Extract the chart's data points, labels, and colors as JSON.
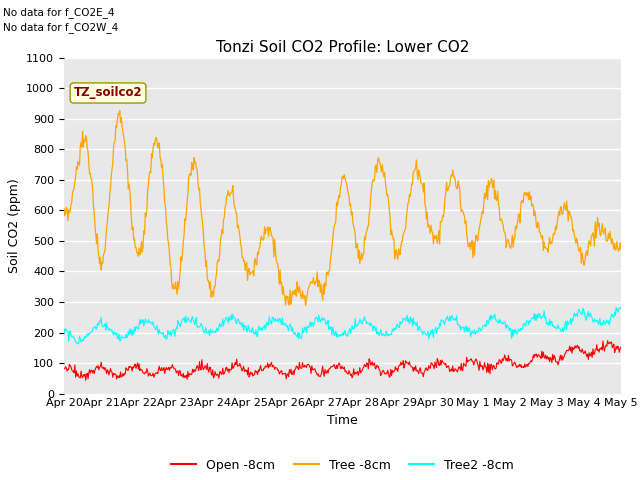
{
  "title": "Tonzi Soil CO2 Profile: Lower CO2",
  "xlabel": "Time",
  "ylabel": "Soil CO2 (ppm)",
  "ylim": [
    0,
    1100
  ],
  "legend_labels": [
    "Open -8cm",
    "Tree -8cm",
    "Tree2 -8cm"
  ],
  "watermark_text": "TZ_soilco2",
  "note1": "No data for f_CO2E_4",
  "note2": "No data for f_CO2W_4",
  "bg_color": "#e8e8e8",
  "grid_color": "white",
  "title_fontsize": 11,
  "label_fontsize": 9,
  "tick_fontsize": 8
}
